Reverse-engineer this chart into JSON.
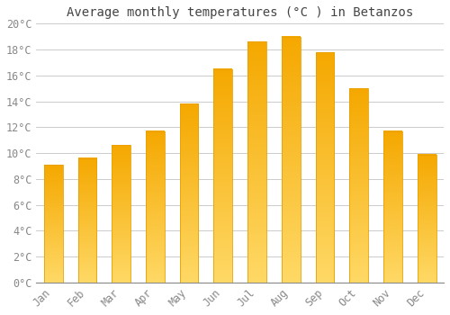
{
  "months": [
    "Jan",
    "Feb",
    "Mar",
    "Apr",
    "May",
    "Jun",
    "Jul",
    "Aug",
    "Sep",
    "Oct",
    "Nov",
    "Dec"
  ],
  "temperatures": [
    9.1,
    9.6,
    10.6,
    11.7,
    13.8,
    16.5,
    18.6,
    19.0,
    17.8,
    15.0,
    11.7,
    9.9
  ],
  "bar_color_top": "#F5A800",
  "bar_color_bottom": "#FFD966",
  "bar_edge_color": "#E8A000",
  "background_color": "#FFFFFF",
  "plot_bg_color": "#FFFFFF",
  "grid_color": "#CCCCCC",
  "title": "Average monthly temperatures (°C ) in Betanzos",
  "title_fontsize": 10,
  "title_color": "#444444",
  "tick_label_color": "#888888",
  "tick_label_fontsize": 8.5,
  "ytick_suffix": "°C",
  "ylim": [
    0,
    20
  ],
  "yticks": [
    0,
    2,
    4,
    6,
    8,
    10,
    12,
    14,
    16,
    18,
    20
  ],
  "bar_width": 0.55,
  "figsize": [
    5.0,
    3.5
  ],
  "dpi": 100
}
